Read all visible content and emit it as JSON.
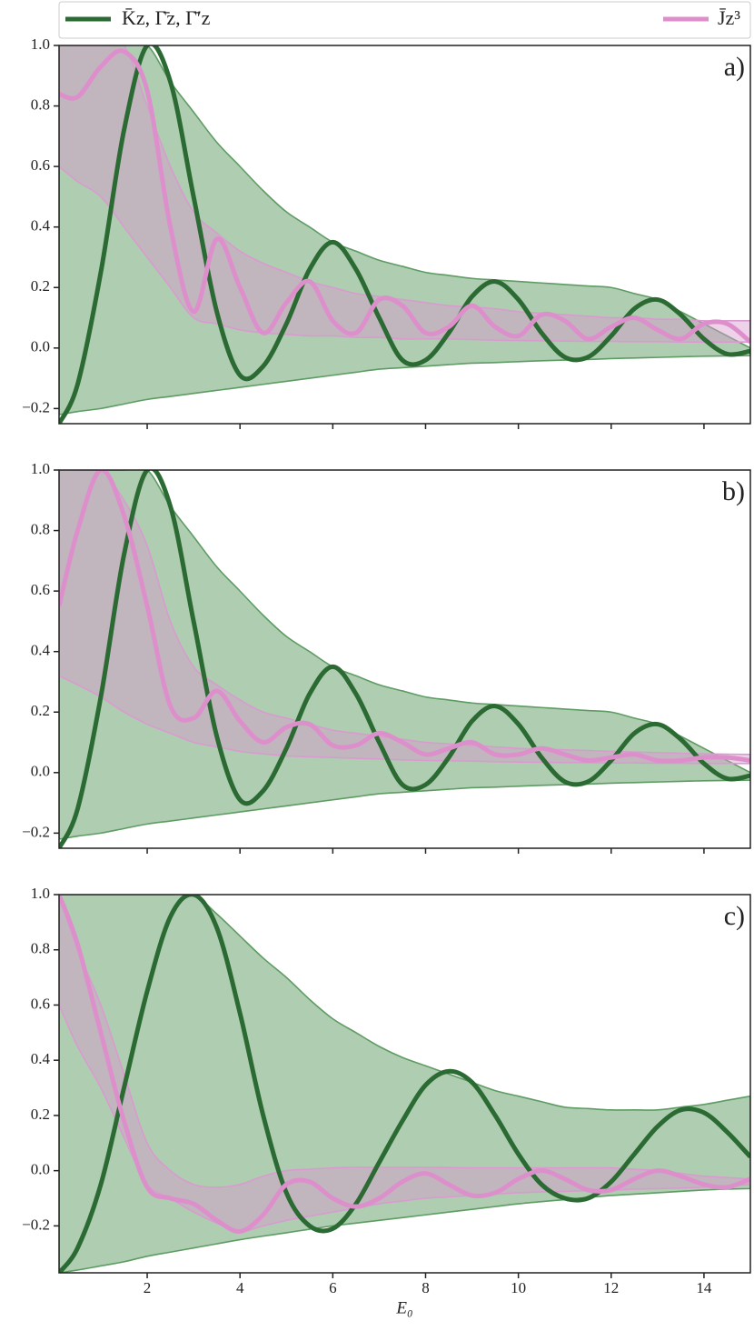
{
  "chart_data": [
    {
      "type": "line",
      "label": "a)",
      "x": [
        0.1,
        0.5,
        1,
        1.5,
        2,
        2.5,
        3,
        3.5,
        4,
        4.5,
        5,
        5.5,
        6,
        6.5,
        7,
        7.5,
        8,
        8.5,
        9,
        9.5,
        10,
        10.5,
        11,
        11.5,
        12,
        12.5,
        13,
        13.5,
        14,
        14.5,
        15
      ],
      "xlim": [
        0.1,
        15
      ],
      "xticks": [
        2,
        4,
        6,
        8,
        10,
        12,
        14
      ],
      "ylim": [
        -0.25,
        1.0
      ],
      "yticks": [
        {
          "value": -0.2,
          "label": "−0.2"
        },
        {
          "value": 0,
          "label": "0.0"
        },
        0.2,
        0.4,
        0.6,
        0.8,
        {
          "value": 1,
          "label": "1.0"
        }
      ],
      "series": [
        {
          "name": "K̄z, Γ̄z, Γ̄′z",
          "color": "#2b6a33",
          "values": [
            -0.25,
            -0.12,
            0.25,
            0.72,
            1.0,
            0.88,
            0.5,
            0.12,
            -0.09,
            -0.06,
            0.08,
            0.26,
            0.35,
            0.26,
            0.1,
            -0.04,
            -0.04,
            0.05,
            0.17,
            0.22,
            0.16,
            0.05,
            -0.03,
            -0.03,
            0.04,
            0.13,
            0.16,
            0.11,
            0.03,
            -0.02,
            -0.01
          ]
        },
        {
          "name": "J̄z³",
          "color": "#dd8fcc",
          "values": [
            0.84,
            0.83,
            0.93,
            0.98,
            0.85,
            0.4,
            0.12,
            0.36,
            0.2,
            0.05,
            0.15,
            0.22,
            0.09,
            0.05,
            0.16,
            0.14,
            0.05,
            0.07,
            0.14,
            0.07,
            0.04,
            0.11,
            0.09,
            0.03,
            0.07,
            0.1,
            0.06,
            0.03,
            0.08,
            0.08,
            0.02
          ]
        }
      ],
      "bands": [
        {
          "color": "#5e9c63",
          "upper": [
            1,
            1,
            1,
            1,
            1,
            0.88,
            0.78,
            0.68,
            0.6,
            0.52,
            0.45,
            0.4,
            0.35,
            0.32,
            0.29,
            0.27,
            0.25,
            0.24,
            0.23,
            0.225,
            0.22,
            0.215,
            0.21,
            0.205,
            0.2,
            0.18,
            0.16,
            0.12,
            0.08,
            0.04,
            0.0
          ],
          "lower": [
            -0.22,
            -0.21,
            -0.2,
            -0.185,
            -0.17,
            -0.16,
            -0.15,
            -0.14,
            -0.13,
            -0.12,
            -0.11,
            -0.1,
            -0.09,
            -0.08,
            -0.07,
            -0.065,
            -0.06,
            -0.055,
            -0.05,
            -0.048,
            -0.045,
            -0.042,
            -0.04,
            -0.038,
            -0.035,
            -0.033,
            -0.031,
            -0.029,
            -0.027,
            -0.026,
            -0.025
          ]
        },
        {
          "color": "#d99bcf",
          "upper": [
            1,
            1,
            1,
            1,
            0.8,
            0.6,
            0.45,
            0.38,
            0.32,
            0.28,
            0.25,
            0.22,
            0.2,
            0.18,
            0.17,
            0.16,
            0.15,
            0.14,
            0.135,
            0.13,
            0.12,
            0.115,
            0.11,
            0.105,
            0.1,
            0.1,
            0.095,
            0.095,
            0.09,
            0.09,
            0.09
          ],
          "lower": [
            0.6,
            0.55,
            0.5,
            0.4,
            0.3,
            0.2,
            0.1,
            0.08,
            0.06,
            0.05,
            0.045,
            0.04,
            0.04,
            0.035,
            0.035,
            0.03,
            0.03,
            0.03,
            0.028,
            0.026,
            0.025,
            0.024,
            0.023,
            0.022,
            0.022,
            0.021,
            0.021,
            0.02,
            0.02,
            0.02,
            0.02
          ]
        }
      ]
    },
    {
      "type": "line",
      "label": "b)",
      "x": [
        0.1,
        0.5,
        1,
        1.5,
        2,
        2.5,
        3,
        3.5,
        4,
        4.5,
        5,
        5.5,
        6,
        6.5,
        7,
        7.5,
        8,
        8.5,
        9,
        9.5,
        10,
        10.5,
        11,
        11.5,
        12,
        12.5,
        13,
        13.5,
        14,
        14.5,
        15
      ],
      "xlim": [
        0.1,
        15
      ],
      "xticks": [
        2,
        4,
        6,
        8,
        10,
        12,
        14
      ],
      "ylim": [
        -0.25,
        1.0
      ],
      "yticks": [
        {
          "value": -0.2,
          "label": "−0.2"
        },
        {
          "value": 0,
          "label": "0.0"
        },
        0.2,
        0.4,
        0.6,
        0.8,
        {
          "value": 1,
          "label": "1.0"
        }
      ],
      "series": [
        {
          "color": "#2b6a33",
          "values": [
            -0.25,
            -0.12,
            0.25,
            0.72,
            1.0,
            0.88,
            0.5,
            0.12,
            -0.09,
            -0.06,
            0.08,
            0.26,
            0.35,
            0.26,
            0.1,
            -0.04,
            -0.04,
            0.05,
            0.17,
            0.22,
            0.16,
            0.05,
            -0.03,
            -0.03,
            0.04,
            0.13,
            0.16,
            0.11,
            0.03,
            -0.02,
            -0.01
          ]
        },
        {
          "color": "#dd8fcc",
          "values": [
            0.55,
            0.8,
            1.0,
            0.85,
            0.55,
            0.22,
            0.18,
            0.27,
            0.17,
            0.1,
            0.15,
            0.16,
            0.09,
            0.09,
            0.13,
            0.1,
            0.06,
            0.08,
            0.1,
            0.06,
            0.06,
            0.08,
            0.06,
            0.04,
            0.05,
            0.06,
            0.04,
            0.04,
            0.05,
            0.05,
            0.04
          ]
        }
      ],
      "bands": [
        {
          "color": "#5e9c63",
          "upper": [
            1,
            1,
            1,
            1,
            1,
            0.88,
            0.78,
            0.68,
            0.6,
            0.52,
            0.45,
            0.4,
            0.35,
            0.32,
            0.29,
            0.27,
            0.25,
            0.24,
            0.23,
            0.225,
            0.22,
            0.215,
            0.21,
            0.205,
            0.2,
            0.18,
            0.16,
            0.12,
            0.08,
            0.04,
            0.0
          ],
          "lower": [
            -0.22,
            -0.21,
            -0.2,
            -0.185,
            -0.17,
            -0.16,
            -0.15,
            -0.14,
            -0.13,
            -0.12,
            -0.11,
            -0.1,
            -0.09,
            -0.08,
            -0.07,
            -0.065,
            -0.06,
            -0.055,
            -0.05,
            -0.048,
            -0.045,
            -0.042,
            -0.04,
            -0.038,
            -0.035,
            -0.033,
            -0.031,
            -0.029,
            -0.027,
            -0.026,
            -0.025
          ]
        },
        {
          "color": "#d99bcf",
          "upper": [
            1,
            1,
            1,
            0.9,
            0.75,
            0.5,
            0.35,
            0.29,
            0.24,
            0.2,
            0.18,
            0.16,
            0.14,
            0.13,
            0.12,
            0.11,
            0.1,
            0.095,
            0.09,
            0.085,
            0.08,
            0.078,
            0.075,
            0.073,
            0.07,
            0.068,
            0.066,
            0.064,
            0.062,
            0.061,
            0.06
          ],
          "lower": [
            0.32,
            0.29,
            0.25,
            0.2,
            0.16,
            0.13,
            0.1,
            0.085,
            0.07,
            0.062,
            0.055,
            0.052,
            0.05,
            0.047,
            0.045,
            0.042,
            0.04,
            0.039,
            0.038,
            0.036,
            0.035,
            0.034,
            0.033,
            0.033,
            0.032,
            0.032,
            0.031,
            0.031,
            0.03,
            0.03,
            0.03
          ]
        }
      ]
    },
    {
      "type": "line",
      "label": "c)",
      "xlabel": "E₀",
      "x": [
        0.1,
        0.5,
        1,
        1.5,
        2,
        2.5,
        3,
        3.5,
        4,
        4.5,
        5,
        5.5,
        6,
        6.5,
        7,
        7.5,
        8,
        8.5,
        9,
        9.5,
        10,
        10.5,
        11,
        11.5,
        12,
        12.5,
        13,
        13.5,
        14,
        14.5,
        15
      ],
      "xlim": [
        0.1,
        15
      ],
      "xticks": [
        2,
        4,
        6,
        8,
        10,
        12,
        14
      ],
      "ylim": [
        -0.37,
        1.0
      ],
      "yticks": [
        {
          "value": -0.2,
          "label": "−0.2"
        },
        {
          "value": 0,
          "label": "0.0"
        },
        0.2,
        0.4,
        0.6,
        0.8,
        {
          "value": 1,
          "label": "1.0"
        }
      ],
      "series": [
        {
          "color": "#2b6a33",
          "values": [
            -0.37,
            -0.28,
            -0.05,
            0.3,
            0.65,
            0.92,
            1.0,
            0.88,
            0.57,
            0.2,
            -0.08,
            -0.2,
            -0.21,
            -0.12,
            0.03,
            0.18,
            0.31,
            0.36,
            0.32,
            0.2,
            0.06,
            -0.05,
            -0.1,
            -0.1,
            -0.04,
            0.06,
            0.16,
            0.22,
            0.21,
            0.14,
            0.05
          ]
        },
        {
          "color": "#dd8fcc",
          "values": [
            1.0,
            0.82,
            0.5,
            0.18,
            -0.06,
            -0.1,
            -0.12,
            -0.18,
            -0.22,
            -0.16,
            -0.05,
            -0.04,
            -0.1,
            -0.13,
            -0.1,
            -0.04,
            -0.01,
            -0.05,
            -0.09,
            -0.08,
            -0.03,
            0.0,
            -0.03,
            -0.07,
            -0.07,
            -0.03,
            0.0,
            -0.02,
            -0.05,
            -0.06,
            -0.03
          ]
        }
      ],
      "bands": [
        {
          "color": "#5e9c63",
          "upper": [
            1,
            1,
            1,
            1,
            1,
            1,
            1,
            0.93,
            0.85,
            0.77,
            0.7,
            0.62,
            0.55,
            0.5,
            0.45,
            0.41,
            0.38,
            0.35,
            0.32,
            0.29,
            0.27,
            0.25,
            0.23,
            0.225,
            0.22,
            0.22,
            0.22,
            0.23,
            0.24,
            0.255,
            0.27
          ],
          "lower": [
            -0.37,
            -0.36,
            -0.345,
            -0.33,
            -0.31,
            -0.295,
            -0.28,
            -0.265,
            -0.25,
            -0.237,
            -0.225,
            -0.212,
            -0.2,
            -0.19,
            -0.18,
            -0.17,
            -0.16,
            -0.15,
            -0.14,
            -0.13,
            -0.12,
            -0.112,
            -0.105,
            -0.097,
            -0.09,
            -0.085,
            -0.08,
            -0.075,
            -0.07,
            -0.067,
            -0.065
          ]
        },
        {
          "color": "#d99bcf",
          "upper": [
            1,
            0.8,
            0.6,
            0.35,
            0.1,
            0.0,
            -0.05,
            -0.06,
            -0.05,
            -0.02,
            0.0,
            0.005,
            0.01,
            0.012,
            0.012,
            0.012,
            0.012,
            0.011,
            0.01,
            0.01,
            0.01,
            0.01,
            0.01,
            0.01,
            0.01,
            0.005,
            0.0,
            -0.01,
            -0.02,
            -0.025,
            -0.03
          ],
          "lower": [
            0.6,
            0.45,
            0.3,
            0.12,
            -0.05,
            -0.1,
            -0.15,
            -0.19,
            -0.22,
            -0.2,
            -0.18,
            -0.165,
            -0.15,
            -0.135,
            -0.12,
            -0.11,
            -0.1,
            -0.095,
            -0.09,
            -0.085,
            -0.08,
            -0.077,
            -0.075,
            -0.072,
            -0.07,
            -0.067,
            -0.065,
            -0.063,
            -0.06,
            -0.055,
            -0.05
          ]
        }
      ]
    }
  ]
}
